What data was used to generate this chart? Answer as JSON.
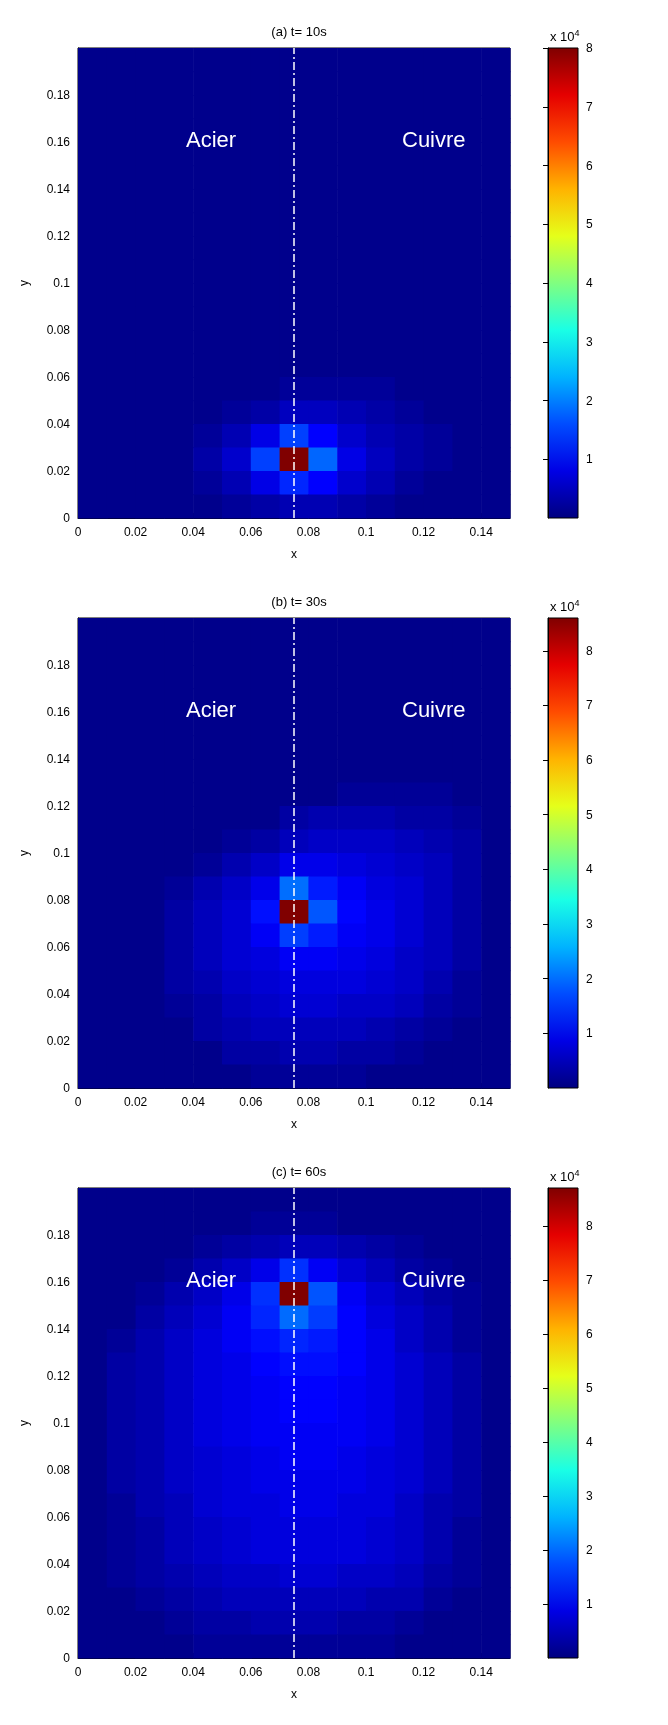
{
  "chart_data": [
    {
      "type": "heatmap",
      "title": "(a) t= 10s",
      "xlabel": "x",
      "ylabel": "y",
      "clabel": "x 10$^{4}$",
      "xlim": [
        0,
        0.15
      ],
      "ylim": [
        0,
        0.2
      ],
      "xticks": [
        0,
        0.02,
        0.04,
        0.06,
        0.08,
        0.1,
        0.12,
        0.14
      ],
      "yticks": [
        0,
        0.02,
        0.04,
        0.06,
        0.08,
        0.1,
        0.12,
        0.14,
        0.16,
        0.18
      ],
      "clim": [
        0,
        8
      ],
      "cticks": [
        1,
        2,
        3,
        4,
        5,
        6,
        7,
        8
      ],
      "annotations": [
        "Acier",
        "Cuivre"
      ],
      "ref_lines": [
        {
          "axis": "x",
          "value": 0.075,
          "color": "#ffffff",
          "line_style": "dashed"
        }
      ],
      "cells": [
        [
          0.1,
          0.1,
          0.1,
          0.1,
          0.1,
          0.1,
          0.1,
          0.1,
          0.1,
          0.1,
          0.1,
          0.1,
          0.1,
          0.1,
          0.1
        ],
        [
          0.1,
          0.1,
          0.1,
          0.1,
          0.1,
          0.1,
          0.1,
          0.1,
          0.1,
          0.1,
          0.1,
          0.1,
          0.1,
          0.1,
          0.1
        ],
        [
          0.1,
          0.1,
          0.1,
          0.1,
          0.1,
          0.1,
          0.1,
          0.1,
          0.1,
          0.1,
          0.1,
          0.1,
          0.1,
          0.1,
          0.1
        ],
        [
          0.1,
          0.1,
          0.1,
          0.1,
          0.1,
          0.1,
          0.1,
          0.1,
          0.1,
          0.1,
          0.1,
          0.1,
          0.1,
          0.1,
          0.1
        ],
        [
          0.1,
          0.1,
          0.1,
          0.1,
          0.1,
          0.1,
          0.1,
          0.1,
          0.1,
          0.1,
          0.1,
          0.1,
          0.1,
          0.1,
          0.1
        ],
        [
          0.1,
          0.1,
          0.1,
          0.1,
          0.1,
          0.1,
          0.1,
          0.1,
          0.1,
          0.1,
          0.1,
          0.1,
          0.1,
          0.1,
          0.1
        ],
        [
          0.1,
          0.1,
          0.1,
          0.1,
          0.1,
          0.1,
          0.1,
          0.1,
          0.1,
          0.1,
          0.1,
          0.1,
          0.1,
          0.1,
          0.1
        ],
        [
          0.1,
          0.1,
          0.1,
          0.1,
          0.1,
          0.1,
          0.1,
          0.1,
          0.1,
          0.1,
          0.1,
          0.1,
          0.1,
          0.1,
          0.1
        ],
        [
          0.1,
          0.1,
          0.1,
          0.1,
          0.1,
          0.1,
          0.1,
          0.1,
          0.1,
          0.1,
          0.1,
          0.1,
          0.1,
          0.1,
          0.1
        ],
        [
          0.1,
          0.1,
          0.1,
          0.1,
          0.1,
          0.1,
          0.1,
          0.1,
          0.1,
          0.1,
          0.1,
          0.1,
          0.1,
          0.1,
          0.1
        ],
        [
          0.1,
          0.1,
          0.1,
          0.1,
          0.1,
          0.1,
          0.1,
          0.1,
          0.1,
          0.1,
          0.1,
          0.1,
          0.1,
          0.1,
          0.1
        ],
        [
          0.1,
          0.1,
          0.1,
          0.1,
          0.1,
          0.1,
          0.1,
          0.1,
          0.1,
          0.1,
          0.1,
          0.1,
          0.1,
          0.1,
          0.1
        ],
        [
          0.1,
          0.1,
          0.1,
          0.1,
          0.1,
          0.1,
          0.1,
          0.1,
          0.1,
          0.1,
          0.1,
          0.1,
          0.1,
          0.1,
          0.1
        ],
        [
          0.1,
          0.1,
          0.1,
          0.1,
          0.1,
          0.1,
          0.1,
          0.1,
          0.1,
          0.1,
          0.1,
          0.1,
          0.1,
          0.1,
          0.1
        ],
        [
          0.1,
          0.1,
          0.1,
          0.1,
          0.1,
          0.1,
          0.1,
          0.2,
          0.2,
          0.2,
          0.2,
          0.1,
          0.1,
          0.1,
          0.1
        ],
        [
          0.1,
          0.1,
          0.1,
          0.1,
          0.1,
          0.2,
          0.3,
          0.5,
          0.5,
          0.4,
          0.3,
          0.2,
          0.1,
          0.1,
          0.1
        ],
        [
          0.1,
          0.1,
          0.1,
          0.1,
          0.2,
          0.4,
          0.8,
          1.5,
          1,
          0.6,
          0.4,
          0.3,
          0.2,
          0.1,
          0.1
        ],
        [
          0.1,
          0.1,
          0.1,
          0.1,
          0.3,
          0.6,
          1.5,
          8,
          1.8,
          0.8,
          0.5,
          0.3,
          0.2,
          0.1,
          0.1
        ],
        [
          0.1,
          0.1,
          0.1,
          0.1,
          0.2,
          0.4,
          0.8,
          1.3,
          1,
          0.6,
          0.4,
          0.2,
          0.1,
          0.1,
          0.1
        ],
        [
          0.1,
          0.1,
          0.1,
          0.1,
          0.1,
          0.2,
          0.3,
          0.4,
          0.4,
          0.3,
          0.2,
          0.1,
          0.1,
          0.1,
          0.1
        ]
      ]
    },
    {
      "type": "heatmap",
      "title": "(b) t= 30s",
      "xlabel": "x",
      "ylabel": "y",
      "clabel": "x 10$^{4}$",
      "xlim": [
        0,
        0.15
      ],
      "ylim": [
        0,
        0.2
      ],
      "xticks": [
        0,
        0.02,
        0.04,
        0.06,
        0.08,
        0.1,
        0.12,
        0.14
      ],
      "yticks": [
        0,
        0.02,
        0.04,
        0.06,
        0.08,
        0.1,
        0.12,
        0.14,
        0.16,
        0.18
      ],
      "clim": [
        0,
        8.6
      ],
      "cticks": [
        1,
        2,
        3,
        4,
        5,
        6,
        7,
        8
      ],
      "annotations": [
        "Acier",
        "Cuivre"
      ],
      "ref_lines": [
        {
          "axis": "x",
          "value": 0.075,
          "color": "#ffffff",
          "line_style": "dashed"
        }
      ],
      "cells": [
        [
          0.1,
          0.1,
          0.1,
          0.1,
          0.1,
          0.1,
          0.1,
          0.1,
          0.1,
          0.1,
          0.1,
          0.1,
          0.1,
          0.1,
          0.1
        ],
        [
          0.1,
          0.1,
          0.1,
          0.1,
          0.1,
          0.1,
          0.1,
          0.1,
          0.1,
          0.1,
          0.1,
          0.1,
          0.1,
          0.1,
          0.1
        ],
        [
          0.1,
          0.1,
          0.1,
          0.1,
          0.1,
          0.1,
          0.1,
          0.1,
          0.1,
          0.1,
          0.1,
          0.1,
          0.1,
          0.1,
          0.1
        ],
        [
          0.1,
          0.1,
          0.1,
          0.1,
          0.1,
          0.1,
          0.1,
          0.1,
          0.1,
          0.1,
          0.1,
          0.1,
          0.1,
          0.1,
          0.1
        ],
        [
          0.1,
          0.1,
          0.1,
          0.1,
          0.1,
          0.1,
          0.1,
          0.1,
          0.1,
          0.1,
          0.1,
          0.1,
          0.1,
          0.1,
          0.1
        ],
        [
          0.1,
          0.1,
          0.1,
          0.1,
          0.1,
          0.1,
          0.1,
          0.1,
          0.1,
          0.1,
          0.1,
          0.1,
          0.1,
          0.1,
          0.1
        ],
        [
          0.1,
          0.1,
          0.1,
          0.1,
          0.1,
          0.1,
          0.1,
          0.1,
          0.1,
          0.1,
          0.1,
          0.1,
          0.1,
          0.1,
          0.1
        ],
        [
          0.1,
          0.1,
          0.1,
          0.1,
          0.1,
          0.1,
          0.1,
          0.1,
          0.1,
          0.2,
          0.2,
          0.2,
          0.2,
          0.1,
          0.1
        ],
        [
          0.1,
          0.1,
          0.1,
          0.1,
          0.1,
          0.1,
          0.1,
          0.3,
          0.4,
          0.4,
          0.4,
          0.3,
          0.3,
          0.2,
          0.1
        ],
        [
          0.1,
          0.1,
          0.1,
          0.1,
          0.1,
          0.2,
          0.3,
          0.5,
          0.6,
          0.6,
          0.6,
          0.5,
          0.4,
          0.3,
          0.1
        ],
        [
          0.1,
          0.1,
          0.1,
          0.1,
          0.2,
          0.4,
          0.6,
          0.9,
          0.9,
          0.8,
          0.7,
          0.6,
          0.5,
          0.3,
          0.1
        ],
        [
          0.1,
          0.1,
          0.1,
          0.2,
          0.4,
          0.6,
          0.9,
          2,
          1.3,
          1,
          0.8,
          0.7,
          0.5,
          0.3,
          0.1
        ],
        [
          0.1,
          0.1,
          0.1,
          0.3,
          0.5,
          0.7,
          1.2,
          8.6,
          1.8,
          1.1,
          0.9,
          0.7,
          0.5,
          0.3,
          0.1
        ],
        [
          0.1,
          0.1,
          0.1,
          0.3,
          0.5,
          0.7,
          1,
          1.6,
          1.3,
          1,
          0.9,
          0.7,
          0.5,
          0.3,
          0.1
        ],
        [
          0.1,
          0.1,
          0.1,
          0.3,
          0.5,
          0.7,
          0.8,
          1,
          1,
          0.9,
          0.8,
          0.6,
          0.5,
          0.3,
          0.1
        ],
        [
          0.1,
          0.1,
          0.1,
          0.3,
          0.4,
          0.6,
          0.7,
          0.8,
          0.8,
          0.8,
          0.7,
          0.6,
          0.4,
          0.2,
          0.1
        ],
        [
          0.1,
          0.1,
          0.1,
          0.2,
          0.3,
          0.5,
          0.6,
          0.7,
          0.7,
          0.6,
          0.6,
          0.5,
          0.3,
          0.2,
          0.1
        ],
        [
          0.1,
          0.1,
          0.1,
          0.1,
          0.3,
          0.4,
          0.5,
          0.5,
          0.5,
          0.5,
          0.4,
          0.3,
          0.2,
          0.1,
          0.1
        ],
        [
          0.1,
          0.1,
          0.1,
          0.1,
          0.1,
          0.3,
          0.3,
          0.4,
          0.4,
          0.3,
          0.3,
          0.2,
          0.1,
          0.1,
          0.1
        ],
        [
          0.1,
          0.1,
          0.1,
          0.1,
          0.1,
          0.1,
          0.2,
          0.2,
          0.2,
          0.2,
          0.1,
          0.1,
          0.1,
          0.1,
          0.1
        ]
      ]
    },
    {
      "type": "heatmap",
      "title": "(c) t= 60s",
      "xlabel": "x",
      "ylabel": "y",
      "clabel": "x 10$^{4}$",
      "xlim": [
        0,
        0.15
      ],
      "ylim": [
        0,
        0.2
      ],
      "xticks": [
        0,
        0.02,
        0.04,
        0.06,
        0.08,
        0.1,
        0.12,
        0.14
      ],
      "yticks": [
        0,
        0.02,
        0.04,
        0.06,
        0.08,
        0.1,
        0.12,
        0.14,
        0.16,
        0.18
      ],
      "clim": [
        0,
        8.7
      ],
      "cticks": [
        1,
        2,
        3,
        4,
        5,
        6,
        7,
        8
      ],
      "annotations": [
        "Acier",
        "Cuivre"
      ],
      "ref_lines": [
        {
          "axis": "x",
          "value": 0.075,
          "color": "#ffffff",
          "line_style": "dashed"
        }
      ],
      "cells": [
        [
          0.1,
          0.1,
          0.1,
          0.1,
          0.1,
          0.1,
          0.1,
          0.1,
          0.1,
          0.1,
          0.1,
          0.1,
          0.1,
          0.1,
          0.1
        ],
        [
          0.1,
          0.1,
          0.1,
          0.1,
          0.1,
          0.1,
          0.2,
          0.2,
          0.2,
          0.1,
          0.1,
          0.1,
          0.1,
          0.1,
          0.1
        ],
        [
          0.1,
          0.1,
          0.1,
          0.1,
          0.2,
          0.3,
          0.4,
          0.5,
          0.5,
          0.4,
          0.3,
          0.2,
          0.1,
          0.1,
          0.1
        ],
        [
          0.1,
          0.1,
          0.1,
          0.2,
          0.4,
          0.6,
          0.9,
          1.5,
          1,
          0.7,
          0.5,
          0.3,
          0.2,
          0.1,
          0.1
        ],
        [
          0.1,
          0.1,
          0.2,
          0.4,
          0.6,
          0.9,
          1.5,
          8.7,
          1.8,
          1,
          0.7,
          0.5,
          0.3,
          0.2,
          0.1
        ],
        [
          0.1,
          0.1,
          0.3,
          0.5,
          0.7,
          1,
          1.4,
          2,
          1.6,
          1.1,
          0.8,
          0.6,
          0.4,
          0.2,
          0.1
        ],
        [
          0.1,
          0.2,
          0.4,
          0.6,
          0.8,
          1,
          1.2,
          1.4,
          1.3,
          1.1,
          0.9,
          0.6,
          0.4,
          0.2,
          0.1
        ],
        [
          0.1,
          0.3,
          0.4,
          0.6,
          0.8,
          0.9,
          1.1,
          1.2,
          1.2,
          1.1,
          0.9,
          0.7,
          0.5,
          0.3,
          0.1
        ],
        [
          0.1,
          0.3,
          0.4,
          0.6,
          0.8,
          0.9,
          1,
          1.1,
          1.1,
          1,
          0.9,
          0.7,
          0.5,
          0.3,
          0.1
        ],
        [
          0.1,
          0.3,
          0.4,
          0.6,
          0.8,
          0.9,
          1,
          1.1,
          1.1,
          1,
          0.9,
          0.7,
          0.5,
          0.3,
          0.1
        ],
        [
          0.1,
          0.3,
          0.4,
          0.6,
          0.8,
          0.9,
          1,
          1,
          1,
          1,
          0.9,
          0.7,
          0.5,
          0.3,
          0.1
        ],
        [
          0.1,
          0.3,
          0.4,
          0.6,
          0.7,
          0.8,
          0.9,
          1,
          1,
          0.9,
          0.8,
          0.7,
          0.5,
          0.3,
          0.1
        ],
        [
          0.1,
          0.3,
          0.4,
          0.6,
          0.7,
          0.8,
          0.9,
          0.9,
          0.9,
          0.9,
          0.8,
          0.7,
          0.5,
          0.3,
          0.1
        ],
        [
          0.1,
          0.2,
          0.4,
          0.5,
          0.7,
          0.8,
          0.8,
          0.9,
          0.9,
          0.8,
          0.8,
          0.6,
          0.4,
          0.3,
          0.1
        ],
        [
          0.1,
          0.2,
          0.3,
          0.5,
          0.6,
          0.7,
          0.8,
          0.8,
          0.8,
          0.8,
          0.7,
          0.6,
          0.4,
          0.2,
          0.1
        ],
        [
          0.1,
          0.2,
          0.3,
          0.5,
          0.6,
          0.7,
          0.8,
          0.8,
          0.8,
          0.8,
          0.7,
          0.6,
          0.4,
          0.2,
          0.1
        ],
        [
          0.1,
          0.2,
          0.3,
          0.4,
          0.5,
          0.6,
          0.6,
          0.7,
          0.7,
          0.6,
          0.6,
          0.5,
          0.3,
          0.2,
          0.1
        ],
        [
          0.1,
          0.1,
          0.2,
          0.3,
          0.4,
          0.5,
          0.5,
          0.5,
          0.5,
          0.5,
          0.4,
          0.4,
          0.2,
          0.1,
          0.1
        ],
        [
          0.1,
          0.1,
          0.1,
          0.2,
          0.3,
          0.3,
          0.4,
          0.4,
          0.4,
          0.3,
          0.3,
          0.2,
          0.1,
          0.1,
          0.1
        ],
        [
          0.1,
          0.1,
          0.1,
          0.1,
          0.2,
          0.2,
          0.2,
          0.2,
          0.2,
          0.2,
          0.2,
          0.1,
          0.1,
          0.1,
          0.1
        ]
      ]
    }
  ]
}
